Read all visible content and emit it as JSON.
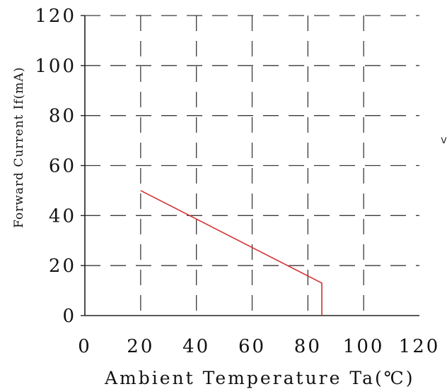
{
  "chart_data": {
    "type": "line",
    "title": "",
    "xlabel": "Ambient Temperature Ta(℃)",
    "ylabel": "Forward Current If(mA)",
    "xlim": [
      0,
      120
    ],
    "ylim": [
      0,
      120
    ],
    "x_ticks": [
      "0",
      "20",
      "40",
      "60",
      "80",
      "100",
      "120"
    ],
    "y_ticks": [
      "0",
      "20",
      "40",
      "60",
      "80",
      "100",
      "120"
    ],
    "grid": true,
    "grid_style": "dashed",
    "series": [
      {
        "color": "#d32f2f",
        "x": [
          20,
          85,
          85
        ],
        "y": [
          50,
          13,
          0
        ]
      }
    ],
    "stray_text": "v"
  }
}
